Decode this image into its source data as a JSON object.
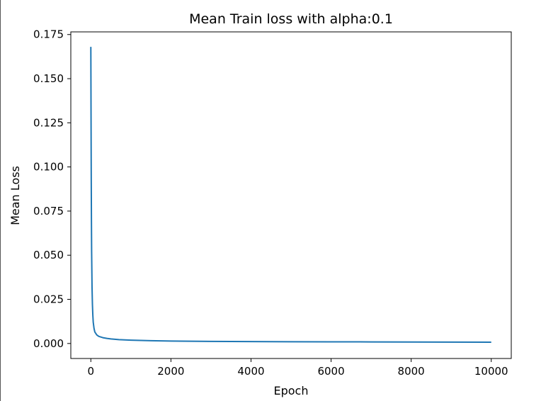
{
  "chart_data": {
    "type": "line",
    "title": "Mean Train loss with alpha:0.1",
    "xlabel": "Epoch",
    "ylabel": "Mean Loss",
    "xlim": [
      -500,
      10500
    ],
    "ylim": [
      -0.0085,
      0.1765
    ],
    "xticks": [
      0,
      2000,
      4000,
      6000,
      8000,
      10000
    ],
    "xtick_labels": [
      "0",
      "2000",
      "4000",
      "6000",
      "8000",
      "10000"
    ],
    "yticks": [
      0.0,
      0.025,
      0.05,
      0.075,
      0.1,
      0.125,
      0.15,
      0.175
    ],
    "ytick_labels": [
      "0.000",
      "0.025",
      "0.050",
      "0.075",
      "0.100",
      "0.125",
      "0.150",
      "0.175"
    ],
    "grid": false,
    "series": [
      {
        "color": "#1f77b4",
        "x": [
          0,
          5,
          10,
          15,
          20,
          30,
          40,
          50,
          60,
          80,
          100,
          150,
          200,
          300,
          400,
          500,
          700,
          1000,
          1500,
          2000,
          3000,
          4000,
          5000,
          6000,
          7000,
          8000,
          9000,
          10000
        ],
        "y": [
          0.168,
          0.13,
          0.095,
          0.07,
          0.052,
          0.032,
          0.022,
          0.016,
          0.012,
          0.0085,
          0.0065,
          0.0048,
          0.004,
          0.0033,
          0.0029,
          0.0026,
          0.0022,
          0.0019,
          0.0016,
          0.0014,
          0.0012,
          0.0011,
          0.001,
          0.00095,
          0.0009,
          0.00085,
          0.0008,
          0.00075
        ]
      }
    ]
  }
}
